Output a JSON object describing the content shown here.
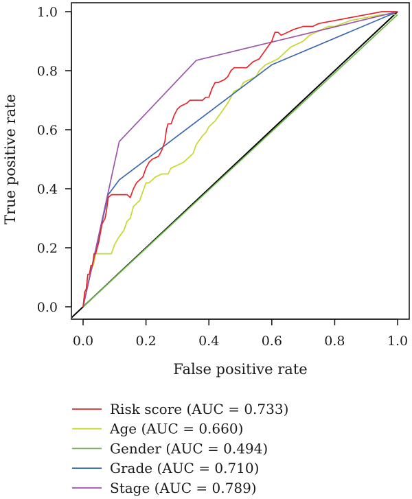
{
  "chart_data": {
    "type": "line",
    "xlabel": "False positive rate",
    "ylabel": "True positive rate",
    "xlim": [
      0,
      1
    ],
    "ylim": [
      0,
      1
    ],
    "x_ticks": [
      "0.0",
      "0.2",
      "0.4",
      "0.6",
      "0.8",
      "1.0"
    ],
    "y_ticks": [
      "0.0",
      "0.2",
      "0.4",
      "0.6",
      "0.8",
      "1.0"
    ],
    "grid": false,
    "legend_position": "bottom-left",
    "reference_line": {
      "points": [
        [
          -0.04,
          -0.04
        ],
        [
          1.0,
          1.0
        ]
      ],
      "color": "#000000"
    },
    "series": [
      {
        "name": "Risk score (AUC = 0.733)",
        "color": "#e8242b",
        "points": [
          [
            0,
            0
          ],
          [
            0.005,
            0.05
          ],
          [
            0.01,
            0.06
          ],
          [
            0.015,
            0.11
          ],
          [
            0.02,
            0.11
          ],
          [
            0.025,
            0.14
          ],
          [
            0.03,
            0.14
          ],
          [
            0.035,
            0.18
          ],
          [
            0.04,
            0.18
          ],
          [
            0.045,
            0.2
          ],
          [
            0.05,
            0.22
          ],
          [
            0.06,
            0.28
          ],
          [
            0.07,
            0.3
          ],
          [
            0.075,
            0.33
          ],
          [
            0.08,
            0.37
          ],
          [
            0.09,
            0.38
          ],
          [
            0.1,
            0.38
          ],
          [
            0.12,
            0.38
          ],
          [
            0.14,
            0.38
          ],
          [
            0.15,
            0.37
          ],
          [
            0.16,
            0.4
          ],
          [
            0.17,
            0.42
          ],
          [
            0.19,
            0.44
          ],
          [
            0.2,
            0.47
          ],
          [
            0.21,
            0.49
          ],
          [
            0.22,
            0.5
          ],
          [
            0.24,
            0.51
          ],
          [
            0.25,
            0.53
          ],
          [
            0.26,
            0.56
          ],
          [
            0.265,
            0.6
          ],
          [
            0.27,
            0.62
          ],
          [
            0.28,
            0.62
          ],
          [
            0.29,
            0.65
          ],
          [
            0.3,
            0.67
          ],
          [
            0.31,
            0.68
          ],
          [
            0.33,
            0.69
          ],
          [
            0.34,
            0.7
          ],
          [
            0.36,
            0.7
          ],
          [
            0.38,
            0.7
          ],
          [
            0.39,
            0.71
          ],
          [
            0.4,
            0.71
          ],
          [
            0.41,
            0.74
          ],
          [
            0.42,
            0.76
          ],
          [
            0.43,
            0.76
          ],
          [
            0.45,
            0.77
          ],
          [
            0.46,
            0.78
          ],
          [
            0.47,
            0.8
          ],
          [
            0.48,
            0.81
          ],
          [
            0.5,
            0.81
          ],
          [
            0.52,
            0.81
          ],
          [
            0.53,
            0.82
          ],
          [
            0.54,
            0.83
          ],
          [
            0.56,
            0.84
          ],
          [
            0.58,
            0.87
          ],
          [
            0.6,
            0.9
          ],
          [
            0.61,
            0.93
          ],
          [
            0.62,
            0.93
          ],
          [
            0.63,
            0.92
          ],
          [
            0.65,
            0.93
          ],
          [
            0.67,
            0.94
          ],
          [
            0.7,
            0.95
          ],
          [
            0.73,
            0.95
          ],
          [
            0.75,
            0.96
          ],
          [
            0.8,
            0.97
          ],
          [
            0.85,
            0.98
          ],
          [
            0.9,
            0.99
          ],
          [
            0.95,
            1.0
          ],
          [
            0.98,
            1.0
          ],
          [
            1,
            1.0
          ]
        ]
      },
      {
        "name": "Age (AUC = 0.660)",
        "color": "#c5d82d",
        "points": [
          [
            0,
            0
          ],
          [
            0.005,
            0.03
          ],
          [
            0.015,
            0.08
          ],
          [
            0.025,
            0.12
          ],
          [
            0.035,
            0.15
          ],
          [
            0.04,
            0.18
          ],
          [
            0.06,
            0.18
          ],
          [
            0.09,
            0.18
          ],
          [
            0.1,
            0.21
          ],
          [
            0.11,
            0.23
          ],
          [
            0.13,
            0.26
          ],
          [
            0.14,
            0.29
          ],
          [
            0.15,
            0.3
          ],
          [
            0.16,
            0.34
          ],
          [
            0.18,
            0.36
          ],
          [
            0.19,
            0.39
          ],
          [
            0.2,
            0.42
          ],
          [
            0.21,
            0.42
          ],
          [
            0.22,
            0.43
          ],
          [
            0.23,
            0.44
          ],
          [
            0.25,
            0.45
          ],
          [
            0.27,
            0.45
          ],
          [
            0.28,
            0.47
          ],
          [
            0.3,
            0.48
          ],
          [
            0.32,
            0.49
          ],
          [
            0.33,
            0.5
          ],
          [
            0.35,
            0.52
          ],
          [
            0.36,
            0.55
          ],
          [
            0.38,
            0.58
          ],
          [
            0.39,
            0.59
          ],
          [
            0.4,
            0.61
          ],
          [
            0.42,
            0.63
          ],
          [
            0.44,
            0.66
          ],
          [
            0.46,
            0.69
          ],
          [
            0.48,
            0.73
          ],
          [
            0.5,
            0.74
          ],
          [
            0.51,
            0.76
          ],
          [
            0.53,
            0.77
          ],
          [
            0.55,
            0.78
          ],
          [
            0.56,
            0.8
          ],
          [
            0.58,
            0.82
          ],
          [
            0.6,
            0.83
          ],
          [
            0.62,
            0.84
          ],
          [
            0.64,
            0.86
          ],
          [
            0.66,
            0.88
          ],
          [
            0.68,
            0.89
          ],
          [
            0.7,
            0.9
          ],
          [
            0.72,
            0.92
          ],
          [
            0.74,
            0.93
          ],
          [
            0.76,
            0.94
          ],
          [
            0.78,
            0.95
          ],
          [
            0.8,
            0.95
          ],
          [
            0.85,
            0.97
          ],
          [
            0.9,
            0.98
          ],
          [
            0.95,
            0.99
          ],
          [
            1,
            0.99
          ]
        ]
      },
      {
        "name": "Gender (AUC = 0.494)",
        "color": "#6bb847",
        "points": [
          [
            0,
            0
          ],
          [
            1,
            0.99
          ]
        ]
      },
      {
        "name": "Grade (AUC = 0.710)",
        "color": "#3968b0",
        "points": [
          [
            0,
            0
          ],
          [
            0.08,
            0.38
          ],
          [
            0.115,
            0.43
          ],
          [
            0.6,
            0.82
          ],
          [
            1,
            1.0
          ]
        ]
      },
      {
        "name": "Stage (AUC = 0.789)",
        "color": "#9b55a8",
        "points": [
          [
            0,
            0
          ],
          [
            0.115,
            0.56
          ],
          [
            0.36,
            0.835
          ],
          [
            1,
            1.0
          ]
        ]
      }
    ]
  }
}
